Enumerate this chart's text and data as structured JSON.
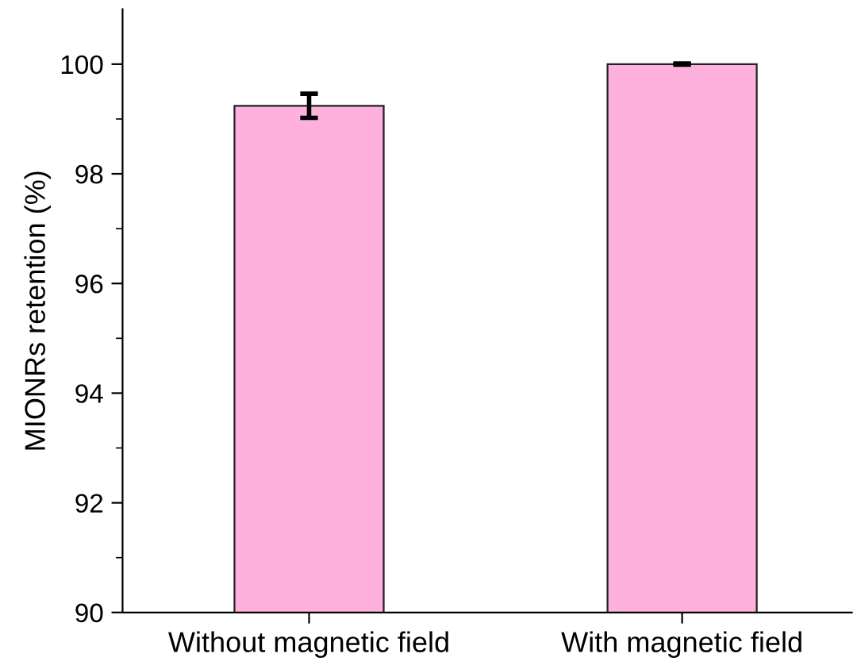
{
  "chart_data": {
    "type": "bar",
    "ylabel": "MIONRs retention (%)",
    "categories": [
      "Without magnetic field",
      "With magnetic field"
    ],
    "values": [
      99.24,
      100.0
    ],
    "errors": [
      0.22,
      0.01
    ],
    "colors": [
      "#fdb1dc",
      "#fdb1dc"
    ],
    "ylim": [
      90,
      101
    ],
    "yticks": [
      90,
      {
        "value": 91,
        "label": null
      },
      92,
      {
        "value": 93,
        "label": null
      },
      94,
      {
        "value": 95,
        "label": null
      },
      96,
      {
        "value": 97,
        "label": null
      },
      98,
      {
        "value": 99,
        "label": null
      },
      100
    ],
    "grid": false
  }
}
